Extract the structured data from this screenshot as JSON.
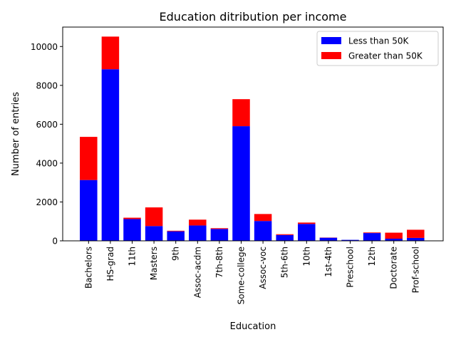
{
  "chart_data": {
    "type": "bar",
    "stacked": true,
    "title": "Education ditribution per income",
    "xlabel": "Education",
    "ylabel": "Number of entries",
    "ylim": [
      0,
      11000
    ],
    "yticks": [
      0,
      2000,
      4000,
      6000,
      8000,
      10000
    ],
    "grid": false,
    "legend_position": "top-right",
    "categories": [
      "Bachelors",
      "HS-grad",
      "11th",
      "Masters",
      "9th",
      "Assoc-acdm",
      "7th-8th",
      "Some-college",
      "Assoc-voc",
      "5th-6th",
      "10th",
      "1st-4th",
      "Preschool",
      "12th",
      "Doctorate",
      "Prof-school"
    ],
    "series": [
      {
        "name": "Less than 50K",
        "color": "#0000ff",
        "values": [
          3130,
          8830,
          1120,
          760,
          490,
          790,
          610,
          5900,
          1020,
          300,
          870,
          160,
          50,
          400,
          110,
          150
        ]
      },
      {
        "name": "Greater than 50K",
        "color": "#ff0000",
        "values": [
          2220,
          1680,
          70,
          960,
          30,
          300,
          40,
          1390,
          360,
          40,
          70,
          10,
          0,
          30,
          310,
          420
        ]
      }
    ]
  }
}
